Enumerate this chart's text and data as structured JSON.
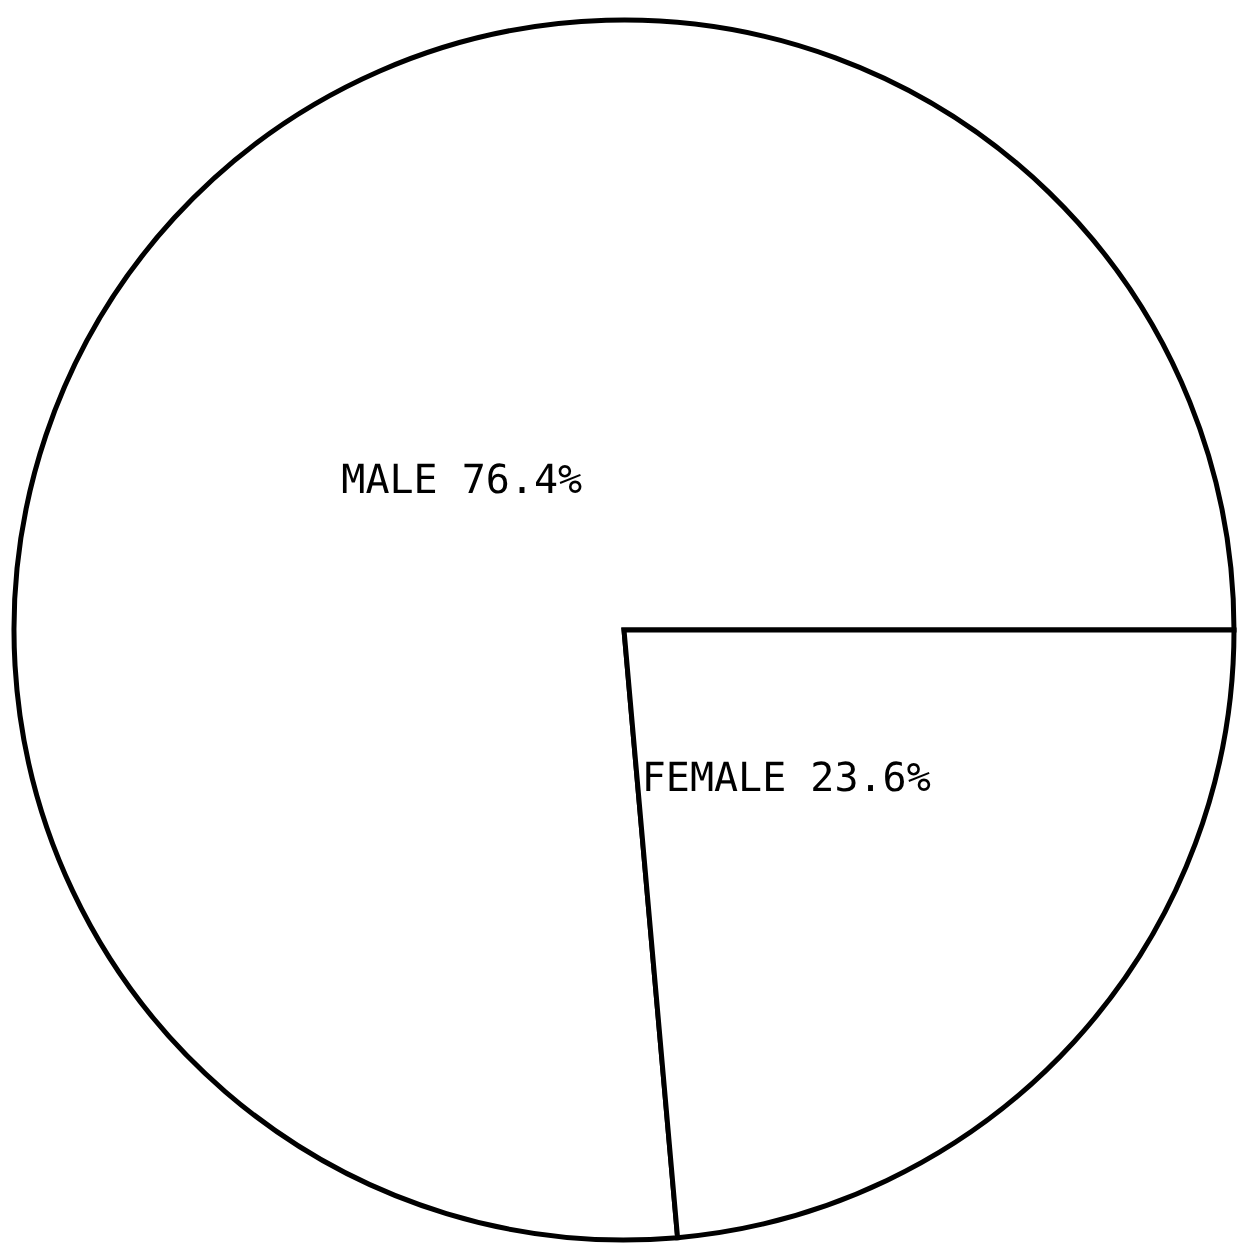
{
  "chart_data": {
    "type": "pie",
    "categories": [
      "MALE",
      "FEMALE"
    ],
    "values": [
      76.4,
      23.6
    ],
    "value_labels": [
      "76.4%",
      "23.6%"
    ],
    "colors": [
      "#ffffff",
      "#ffffff"
    ]
  }
}
